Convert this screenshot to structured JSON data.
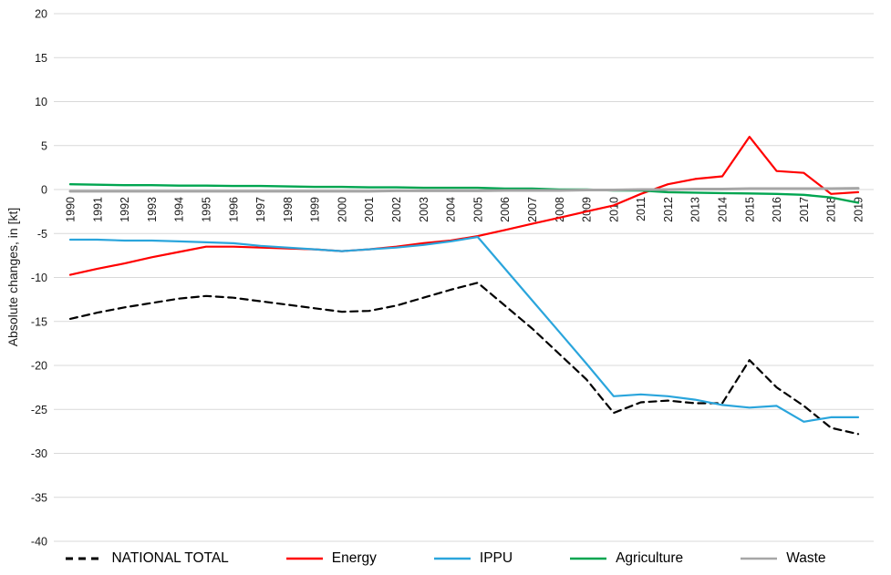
{
  "chart_data": {
    "type": "line",
    "title": "",
    "xlabel": "",
    "ylabel": "Absolute changes, in [kt]",
    "ylim": [
      -40,
      20
    ],
    "ytick_labels": [
      "20",
      "15",
      "10",
      "5",
      "0",
      "-5",
      "-10",
      "-15",
      "-20",
      "-25",
      "-30",
      "-35",
      "-40"
    ],
    "grid": "horizontal-only",
    "legend_position": "bottom",
    "categories": [
      "1990",
      "1991",
      "1992",
      "1993",
      "1994",
      "1995",
      "1996",
      "1997",
      "1998",
      "1999",
      "2000",
      "2001",
      "2002",
      "2003",
      "2004",
      "2005",
      "2006",
      "2007",
      "2008",
      "2009",
      "2010",
      "2011",
      "2012",
      "2013",
      "2014",
      "2015",
      "2016",
      "2017",
      "2018",
      "2019"
    ],
    "series": [
      {
        "name": "NATIONAL TOTAL",
        "color": "#000000",
        "style": "dashed",
        "width": 2.2,
        "values": [
          -14.7,
          -14.0,
          -13.4,
          -12.9,
          -12.4,
          -12.1,
          -12.3,
          -12.7,
          -13.1,
          -13.5,
          -13.9,
          -13.8,
          -13.2,
          -12.3,
          -11.4,
          -10.6,
          -13.2,
          -15.8,
          -18.7,
          -21.6,
          -25.4,
          -24.2,
          -24.0,
          -24.3,
          -24.3,
          -19.4,
          -22.5,
          -24.6,
          -27.1,
          -27.8
        ]
      },
      {
        "name": "Energy",
        "color": "#ff0000",
        "style": "solid",
        "width": 2.2,
        "values": [
          -9.7,
          -9.0,
          -8.4,
          -7.7,
          -7.1,
          -6.5,
          -6.5,
          -6.6,
          -6.7,
          -6.8,
          -7.0,
          -6.8,
          -6.5,
          -6.1,
          -5.8,
          -5.3,
          -4.6,
          -3.9,
          -3.2,
          -2.5,
          -1.8,
          -0.5,
          0.6,
          1.2,
          1.5,
          6.0,
          2.1,
          1.9,
          -0.5,
          -0.3
        ]
      },
      {
        "name": "IPPU",
        "color": "#2aa5dc",
        "style": "solid",
        "width": 2.2,
        "values": [
          -5.7,
          -5.7,
          -5.8,
          -5.8,
          -5.9,
          -6.0,
          -6.1,
          -6.4,
          -6.6,
          -6.8,
          -7.0,
          -6.8,
          -6.6,
          -6.3,
          -5.9,
          -5.4,
          -9.0,
          -12.6,
          -16.2,
          -19.8,
          -23.5,
          -23.3,
          -23.5,
          -23.9,
          -24.5,
          -24.8,
          -24.6,
          -26.4,
          -25.9,
          -25.9
        ]
      },
      {
        "name": "Agriculture",
        "color": "#00a550",
        "style": "solid",
        "width": 2.4,
        "values": [
          0.6,
          0.55,
          0.5,
          0.5,
          0.45,
          0.45,
          0.4,
          0.4,
          0.35,
          0.3,
          0.3,
          0.25,
          0.25,
          0.2,
          0.2,
          0.2,
          0.1,
          0.1,
          0.0,
          0.0,
          -0.1,
          -0.1,
          -0.3,
          -0.35,
          -0.4,
          -0.45,
          -0.5,
          -0.6,
          -0.9,
          -1.5
        ]
      },
      {
        "name": "Waste",
        "color": "#a6a6a6",
        "style": "solid",
        "width": 3,
        "values": [
          -0.2,
          -0.2,
          -0.2,
          -0.2,
          -0.2,
          -0.2,
          -0.2,
          -0.2,
          -0.2,
          -0.2,
          -0.2,
          -0.2,
          -0.15,
          -0.15,
          -0.15,
          -0.15,
          -0.1,
          -0.1,
          -0.1,
          -0.05,
          -0.05,
          0.0,
          0.0,
          0.05,
          0.05,
          0.1,
          0.1,
          0.1,
          0.1,
          0.15
        ]
      }
    ],
    "legend_entries": [
      "NATIONAL TOTAL",
      "Energy",
      "IPPU",
      "Agriculture",
      "Waste"
    ]
  },
  "colors": {
    "gridline": "#d9d9d9",
    "tick_text": "#1a1a1a"
  }
}
